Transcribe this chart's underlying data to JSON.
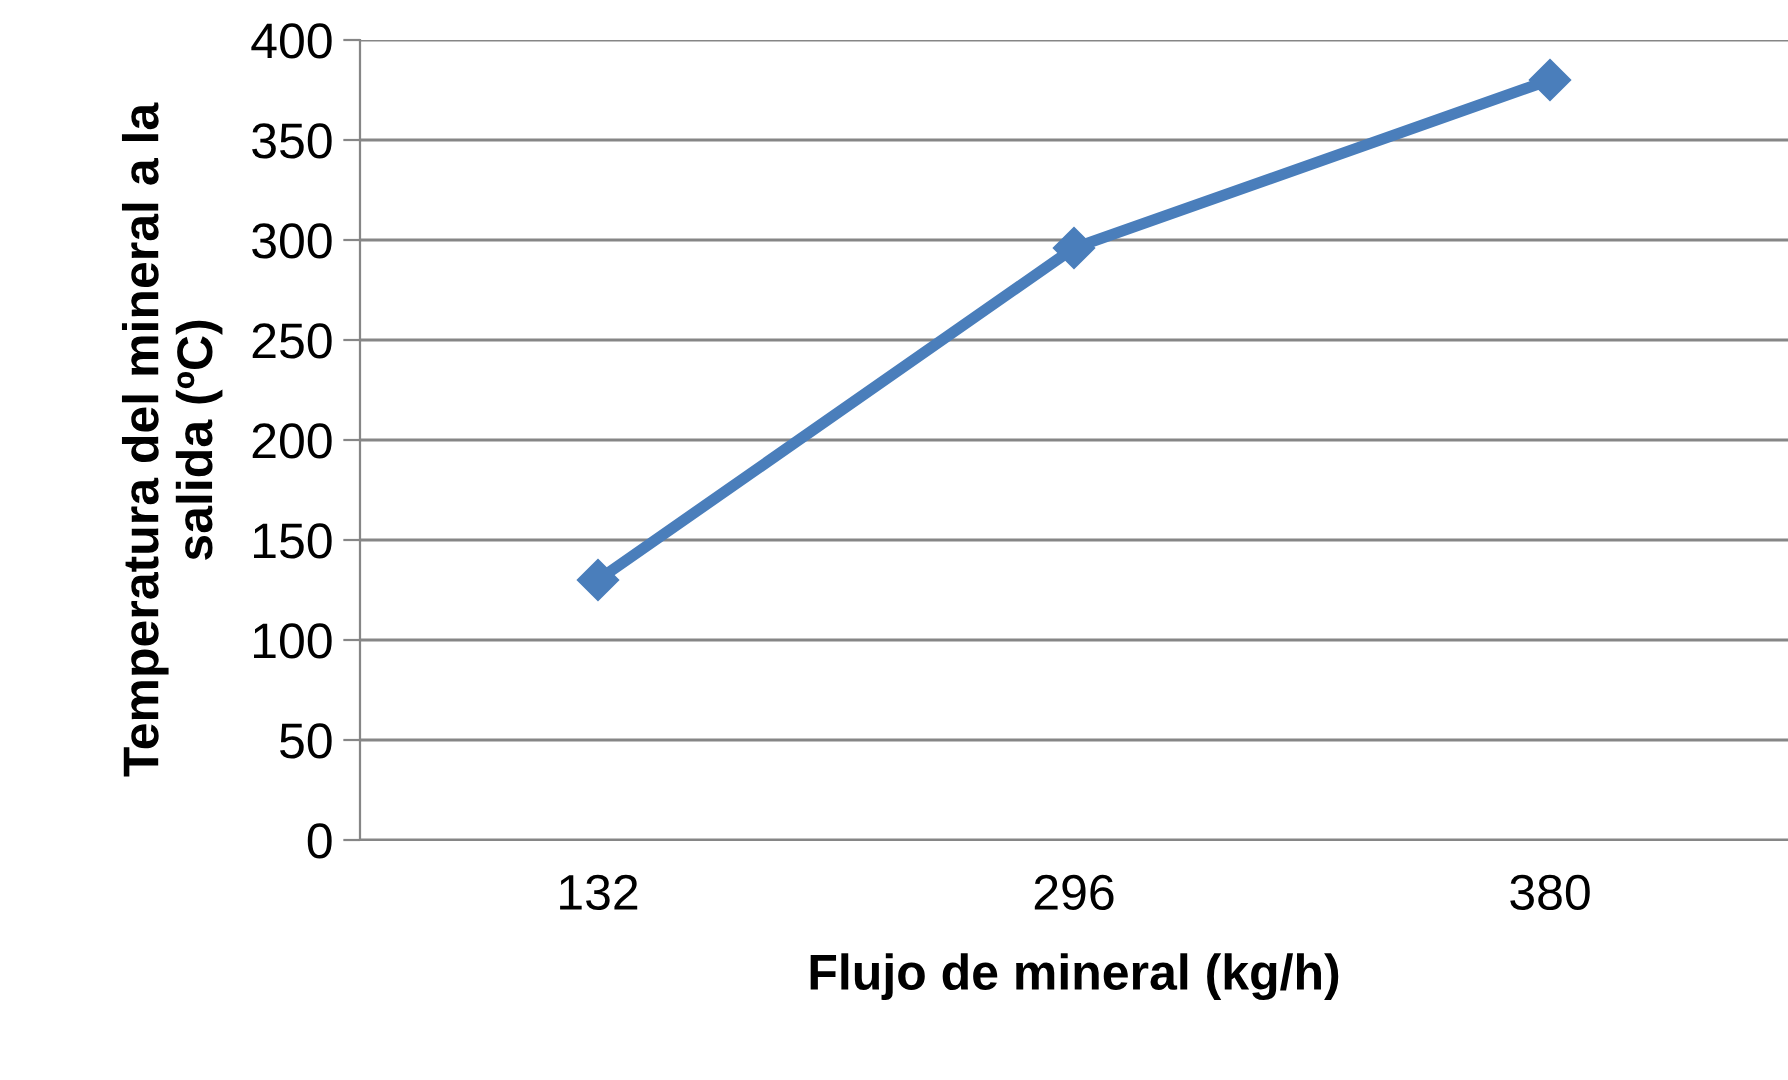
{
  "chart_data": {
    "type": "line",
    "xlabel": "Flujo de mineral (kg/h)",
    "ylabel": "Temperatura del mineral a la\nsalida (ºC)",
    "categories": [
      "132",
      "296",
      "380"
    ],
    "series": [
      {
        "color": "#4a7ebb",
        "values": [
          130,
          296,
          380
        ]
      }
    ],
    "ylim": [
      0,
      400
    ],
    "yticks": [
      0,
      50,
      100,
      150,
      200,
      250,
      300,
      350,
      400
    ],
    "grid": "y",
    "marker": "diamond",
    "line_style": "solid"
  }
}
